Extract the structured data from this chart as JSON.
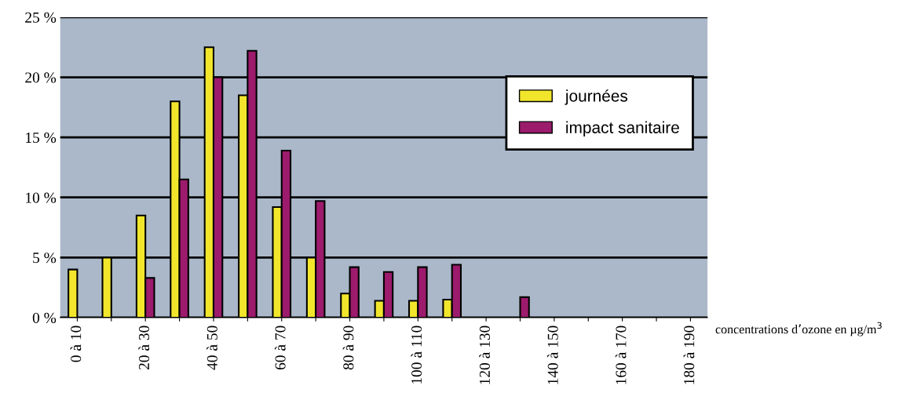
{
  "chart_data": {
    "type": "bar",
    "xlabel": "concentrations d’ozone en µg/m$^{3}$",
    "categories": [
      "0 à 10",
      null,
      "20 à 30",
      null,
      "40 à 50",
      null,
      "60 à 70",
      null,
      "80 à 90",
      null,
      "100 à 110",
      null,
      "120 à 130",
      null,
      "140 à 150",
      null,
      "160 à 170",
      null,
      "180 à 190"
    ],
    "series": [
      {
        "name": "journées",
        "color": "#f2e62c",
        "values": [
          4,
          5,
          8.5,
          18,
          22.5,
          18.5,
          9.2,
          5,
          2,
          1.4,
          1.4,
          1.5,
          null,
          null,
          null,
          null,
          null,
          null,
          null
        ]
      },
      {
        "name": "impact sanitaire",
        "color": "#9c1b6c",
        "values": [
          null,
          null,
          3.3,
          11.5,
          20,
          22.2,
          13.9,
          9.7,
          4.2,
          3.8,
          4.2,
          4.4,
          null,
          1.7,
          null,
          null,
          null,
          null,
          null
        ]
      }
    ],
    "ylim": [
      0,
      25
    ],
    "yticks": [
      {
        "value": 0,
        "label": "0 %"
      },
      {
        "value": 5,
        "label": "5 %"
      },
      {
        "value": 10,
        "label": "10 %"
      },
      {
        "value": 15,
        "label": "15 %"
      },
      {
        "value": 20,
        "label": "20 %"
      },
      {
        "value": 25,
        "label": "25 %"
      }
    ],
    "grid": "y",
    "legend": "top right"
  }
}
